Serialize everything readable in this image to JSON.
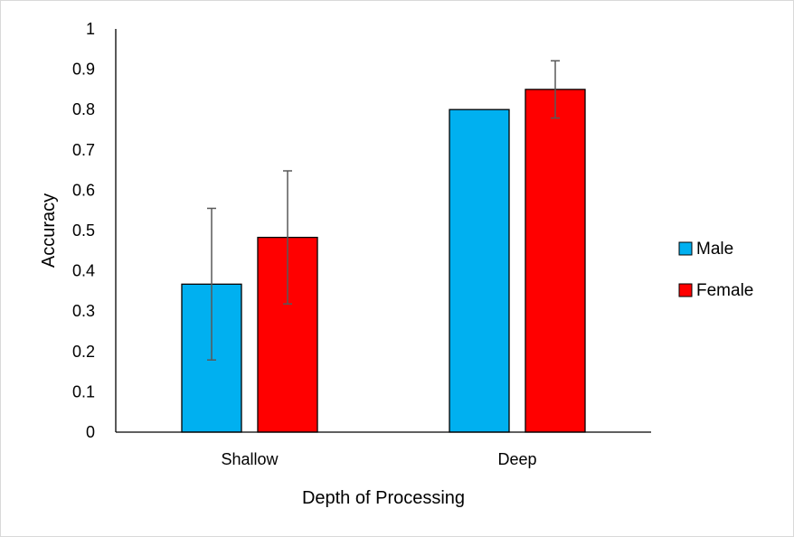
{
  "chart_data": {
    "type": "bar",
    "title": "",
    "xlabel": "Depth of Processing",
    "ylabel": "Accuracy",
    "categories": [
      "Shallow",
      "Deep"
    ],
    "series": [
      {
        "name": "Male",
        "color": "#00b0f0",
        "values": [
          0.367,
          0.8
        ],
        "error": [
          0.188,
          0
        ]
      },
      {
        "name": "Female",
        "color": "#ff0000",
        "values": [
          0.483,
          0.85
        ],
        "error": [
          0.165,
          0.071
        ]
      }
    ],
    "ylim": [
      0,
      1
    ],
    "yticks": [
      "0",
      "0.1",
      "0.2",
      "0.3",
      "0.4",
      "0.5",
      "0.6",
      "0.7",
      "0.8",
      "0.9",
      "1"
    ],
    "grid": false,
    "legend_position": "right"
  }
}
